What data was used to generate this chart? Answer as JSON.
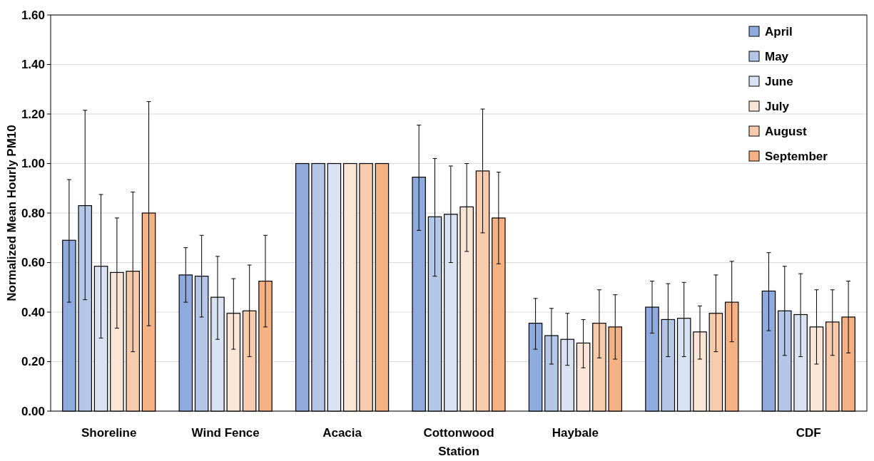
{
  "chart_data": {
    "type": "bar",
    "xlabel": "Station",
    "ylabel": "Normalized Mean Hourly PM10",
    "categories": [
      "Shoreline",
      "Wind Fence",
      "Acacia",
      "Cottonwood",
      "Haybale",
      null,
      "CDF"
    ],
    "series": [
      {
        "name": "April",
        "color": "#8faadc",
        "values": [
          0.69,
          0.55,
          1.0,
          0.945,
          0.355,
          0.42,
          0.485
        ],
        "errors": [
          [
            0.44,
            0.935
          ],
          [
            0.44,
            0.66
          ],
          null,
          [
            0.73,
            1.155
          ],
          [
            0.25,
            0.455
          ],
          [
            0.315,
            0.525
          ],
          [
            0.325,
            0.64
          ]
        ]
      },
      {
        "name": "May",
        "color": "#b4c7e7",
        "values": [
          0.83,
          0.545,
          1.0,
          0.785,
          0.305,
          0.37,
          0.405
        ],
        "errors": [
          [
            0.45,
            1.215
          ],
          [
            0.38,
            0.71
          ],
          null,
          [
            0.545,
            1.02
          ],
          [
            0.19,
            0.415
          ],
          [
            0.22,
            0.515
          ],
          [
            0.225,
            0.585
          ]
        ]
      },
      {
        "name": "June",
        "color": "#dae3f3",
        "values": [
          0.585,
          0.46,
          1.0,
          0.795,
          0.29,
          0.375,
          0.39
        ],
        "errors": [
          [
            0.295,
            0.875
          ],
          [
            0.29,
            0.625
          ],
          null,
          [
            0.6,
            0.99
          ],
          [
            0.185,
            0.395
          ],
          [
            0.22,
            0.52
          ],
          [
            0.22,
            0.555
          ]
        ]
      },
      {
        "name": "July",
        "color": "#fbe5d6",
        "values": [
          0.56,
          0.395,
          1.0,
          0.825,
          0.275,
          0.32,
          0.34
        ],
        "errors": [
          [
            0.335,
            0.78
          ],
          [
            0.25,
            0.535
          ],
          null,
          [
            0.645,
            1.0
          ],
          [
            0.175,
            0.37
          ],
          [
            0.21,
            0.425
          ],
          [
            0.19,
            0.49
          ]
        ]
      },
      {
        "name": "August",
        "color": "#f8cbad",
        "values": [
          0.565,
          0.405,
          1.0,
          0.97,
          0.355,
          0.395,
          0.36
        ],
        "errors": [
          [
            0.24,
            0.885
          ],
          [
            0.22,
            0.59
          ],
          null,
          [
            0.72,
            1.22
          ],
          [
            0.215,
            0.49
          ],
          [
            0.24,
            0.55
          ],
          [
            0.225,
            0.49
          ]
        ]
      },
      {
        "name": "September",
        "color": "#f4b183",
        "values": [
          0.8,
          0.525,
          1.0,
          0.78,
          0.34,
          0.44,
          0.38
        ],
        "errors": [
          [
            0.345,
            1.25
          ],
          [
            0.34,
            0.71
          ],
          null,
          [
            0.595,
            0.965
          ],
          [
            0.21,
            0.47
          ],
          [
            0.28,
            0.605
          ],
          [
            0.235,
            0.525
          ]
        ]
      }
    ],
    "ylim": [
      0,
      1.6
    ],
    "yticks": [
      {
        "value": 0,
        "label": "0.00"
      },
      {
        "value": 0.2,
        "label": "0.20"
      },
      {
        "value": 0.4,
        "label": "0.40"
      },
      {
        "value": 0.6,
        "label": "0.60"
      },
      {
        "value": 0.8,
        "label": "0.80"
      },
      {
        "value": 1.0,
        "label": "1.00"
      },
      {
        "value": 1.2,
        "label": "1.20"
      },
      {
        "value": 1.4,
        "label": "1.40"
      },
      {
        "value": 1.6,
        "label": "1.60"
      }
    ],
    "grid": "y",
    "legend": "top right"
  }
}
